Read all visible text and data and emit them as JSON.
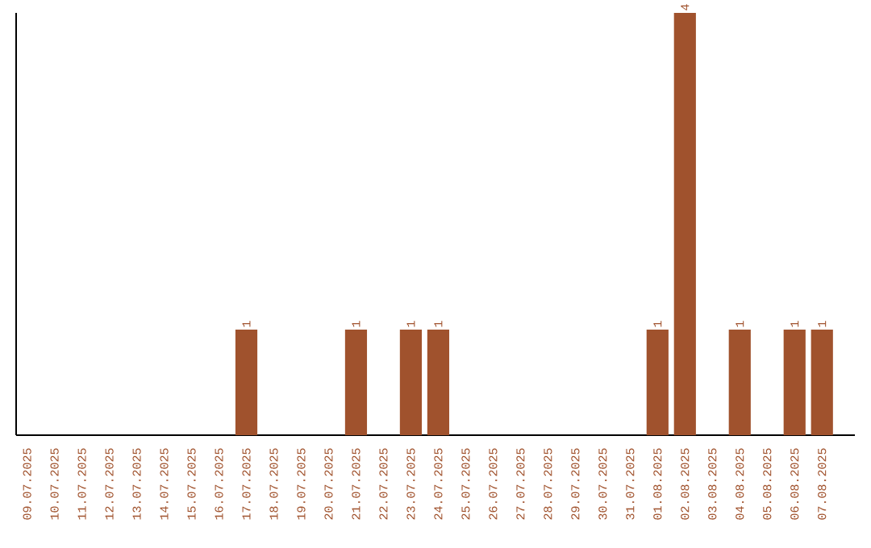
{
  "chart_data": {
    "type": "bar",
    "color": "#a0522d",
    "categories": [
      "09.07.2025",
      "10.07.2025",
      "11.07.2025",
      "12.07.2025",
      "13.07.2025",
      "14.07.2025",
      "15.07.2025",
      "16.07.2025",
      "17.07.2025",
      "18.07.2025",
      "19.07.2025",
      "20.07.2025",
      "21.07.2025",
      "22.07.2025",
      "23.07.2025",
      "24.07.2025",
      "25.07.2025",
      "26.07.2025",
      "27.07.2025",
      "28.07.2025",
      "29.07.2025",
      "30.07.2025",
      "31.07.2025",
      "01.08.2025",
      "02.08.2025",
      "03.08.2025",
      "04.08.2025",
      "05.08.2025",
      "06.08.2025",
      "07.08.2025"
    ],
    "values": [
      0,
      0,
      0,
      0,
      0,
      0,
      0,
      0,
      1,
      0,
      0,
      0,
      1,
      0,
      1,
      1,
      0,
      0,
      0,
      0,
      0,
      0,
      0,
      1,
      4,
      0,
      1,
      0,
      1,
      1
    ],
    "value_labels": [
      null,
      null,
      null,
      null,
      null,
      null,
      null,
      null,
      "1",
      null,
      null,
      null,
      "1",
      null,
      "1",
      "1",
      null,
      null,
      null,
      null,
      null,
      null,
      null,
      "1",
      "4",
      null,
      "1",
      null,
      "1",
      "1"
    ]
  }
}
